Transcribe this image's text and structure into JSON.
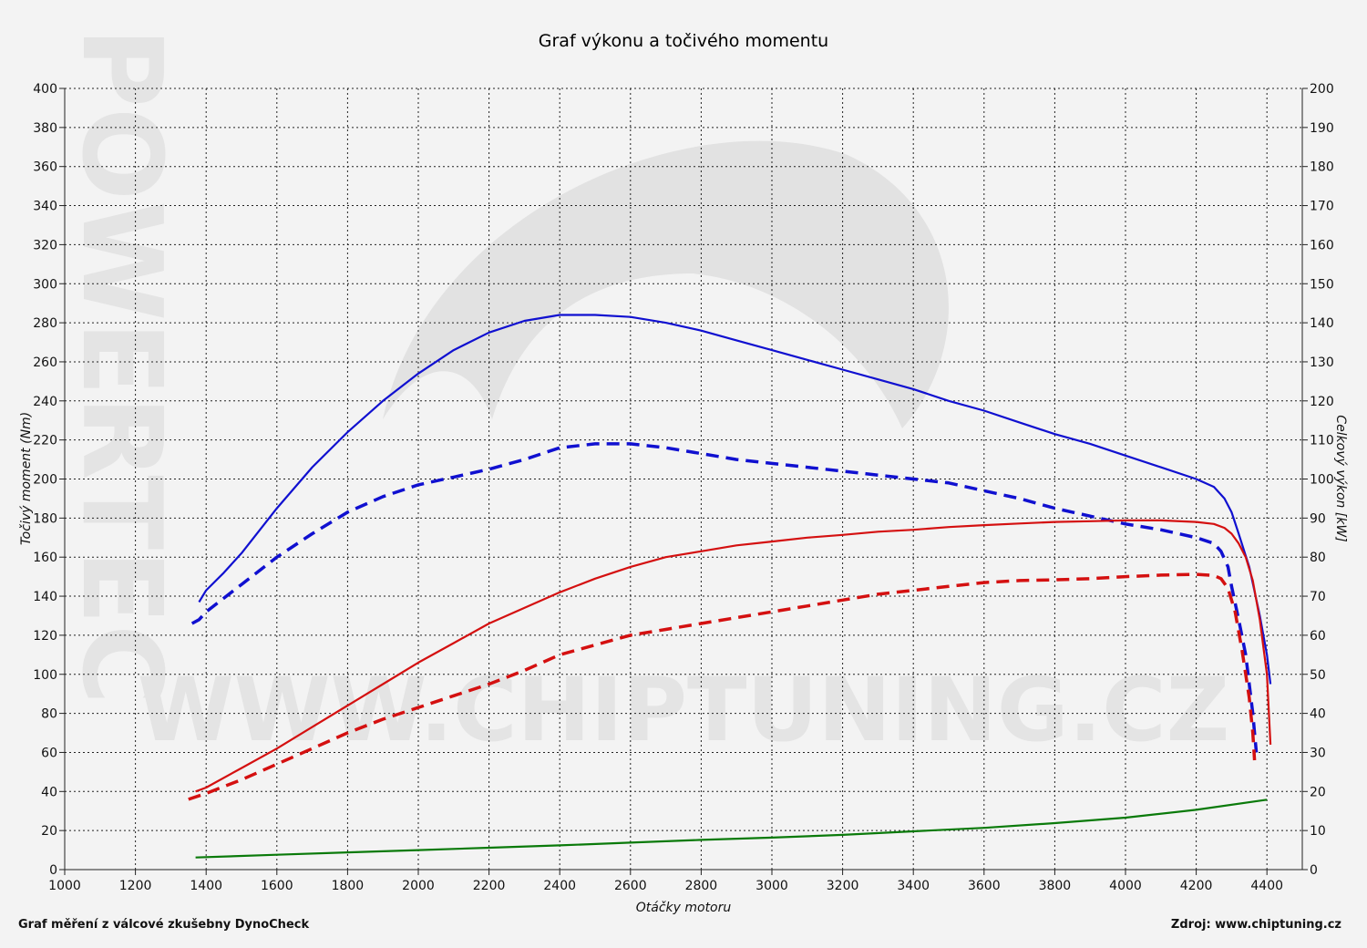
{
  "header": {
    "title": "Graf výkonu a točivého momentu"
  },
  "footer": {
    "left": "Graf měření z válcové zkušebny DynoCheck",
    "right": "Zdroj: www.chiptuning.cz"
  },
  "watermark": {
    "text": "WWW.CHIPTUNING.CZ",
    "side_text": "POWERTEC"
  },
  "colors": {
    "torque": "#1010d0",
    "power": "#d41010",
    "loss": "#0a7a0a",
    "grid": "#222222"
  },
  "chart_data": {
    "type": "line",
    "title": "Graf výkonu a točivého momentu",
    "xlabel": "Otáčky motoru",
    "ylabel": "Točivý moment (Nm)",
    "y2label": "Celkový výkon [kW]",
    "xlim": [
      1000,
      4500
    ],
    "ylim": [
      0,
      400
    ],
    "y2lim": [
      0,
      200
    ],
    "x_ticks": [
      1000,
      1200,
      1400,
      1600,
      1800,
      2000,
      2200,
      2400,
      2600,
      2800,
      3000,
      3200,
      3400,
      3600,
      3800,
      4000,
      4200,
      4400
    ],
    "y_ticks": [
      0,
      20,
      40,
      60,
      80,
      100,
      120,
      140,
      160,
      180,
      200,
      220,
      240,
      260,
      280,
      300,
      320,
      340,
      360,
      380,
      400
    ],
    "y2_ticks": [
      0,
      10,
      20,
      30,
      40,
      50,
      60,
      70,
      80,
      90,
      100,
      110,
      120,
      130,
      140,
      150,
      160,
      170,
      180,
      190,
      200
    ],
    "grid": true,
    "series": [
      {
        "axis": "left",
        "color": "#1010d0",
        "dash": false,
        "x": [
          1380,
          1400,
          1450,
          1500,
          1600,
          1700,
          1800,
          1900,
          2000,
          2100,
          2200,
          2300,
          2400,
          2500,
          2600,
          2700,
          2800,
          2900,
          3000,
          3100,
          3200,
          3300,
          3400,
          3500,
          3600,
          3700,
          3800,
          3900,
          4000,
          4100,
          4200,
          4250,
          4280,
          4300,
          4320,
          4350,
          4380,
          4400,
          4410
        ],
        "y": [
          137,
          143,
          152,
          162,
          185,
          206,
          224,
          240,
          254,
          266,
          275,
          281,
          284,
          284,
          283,
          280,
          276,
          271,
          266,
          261,
          256,
          251,
          246,
          240,
          235,
          229,
          223,
          218,
          212,
          206,
          200,
          196,
          190,
          183,
          172,
          155,
          130,
          110,
          95
        ]
      },
      {
        "axis": "left",
        "color": "#1010d0",
        "dash": true,
        "x": [
          1360,
          1380,
          1400,
          1450,
          1500,
          1600,
          1700,
          1800,
          1900,
          2000,
          2100,
          2200,
          2300,
          2400,
          2500,
          2600,
          2700,
          2800,
          2900,
          3000,
          3100,
          3200,
          3300,
          3400,
          3500,
          3600,
          3700,
          3800,
          3900,
          4000,
          4100,
          4200,
          4250,
          4270,
          4290,
          4300,
          4320,
          4340,
          4350,
          4360,
          4365,
          4370
        ],
        "y": [
          126,
          128,
          132,
          139,
          146,
          160,
          172,
          183,
          191,
          197,
          201,
          205,
          210,
          216,
          218,
          218,
          216,
          213,
          210,
          208,
          206,
          204,
          202,
          200,
          198,
          194,
          190,
          185,
          181,
          177,
          174,
          170,
          167,
          163,
          155,
          145,
          128,
          110,
          95,
          80,
          70,
          60
        ]
      },
      {
        "axis": "right",
        "color": "#d41010",
        "dash": false,
        "x": [
          1370,
          1400,
          1500,
          1600,
          1700,
          1800,
          1900,
          2000,
          2100,
          2200,
          2300,
          2400,
          2500,
          2600,
          2700,
          2800,
          2900,
          3000,
          3100,
          3200,
          3300,
          3400,
          3500,
          3600,
          3700,
          3800,
          3900,
          4000,
          4100,
          4200,
          4250,
          4280,
          4300,
          4320,
          4340,
          4360,
          4380,
          4400,
          4410
        ],
        "y": [
          20,
          21,
          26,
          31,
          36.5,
          42,
          47.5,
          53,
          58,
          63,
          67,
          71,
          74.5,
          77.5,
          80,
          81.5,
          83,
          84,
          85,
          85.7,
          86.5,
          87,
          87.7,
          88.2,
          88.6,
          89,
          89.2,
          89.4,
          89.4,
          89,
          88.5,
          87.5,
          86,
          83.5,
          80,
          74,
          64,
          50,
          32
        ]
      },
      {
        "axis": "right",
        "color": "#d41010",
        "dash": true,
        "x": [
          1350,
          1400,
          1500,
          1600,
          1700,
          1800,
          1900,
          2000,
          2100,
          2200,
          2300,
          2400,
          2500,
          2600,
          2700,
          2800,
          2900,
          3000,
          3100,
          3200,
          3300,
          3400,
          3500,
          3600,
          3700,
          3800,
          3900,
          4000,
          4100,
          4200,
          4250,
          4270,
          4290,
          4310,
          4330,
          4350,
          4360,
          4365
        ],
        "y": [
          18,
          19.5,
          23,
          27,
          31,
          35,
          38.5,
          41.5,
          44.5,
          47.5,
          51,
          55,
          57.5,
          60,
          61.5,
          63,
          64.5,
          66,
          67.5,
          69,
          70.5,
          71.5,
          72.5,
          73.5,
          74,
          74.2,
          74.5,
          75,
          75.4,
          75.6,
          75.3,
          74.5,
          72,
          66,
          56,
          44,
          35,
          28
        ]
      },
      {
        "axis": "right",
        "color": "#0a7a0a",
        "dash": false,
        "x": [
          1370,
          1600,
          1800,
          2000,
          2200,
          2400,
          2600,
          2800,
          3000,
          3200,
          3400,
          3600,
          3800,
          4000,
          4200,
          4400
        ],
        "y": [
          3.1,
          3.8,
          4.4,
          5.0,
          5.6,
          6.2,
          6.9,
          7.6,
          8.2,
          8.9,
          9.8,
          10.7,
          11.9,
          13.3,
          15.3,
          17.9
        ]
      }
    ]
  }
}
